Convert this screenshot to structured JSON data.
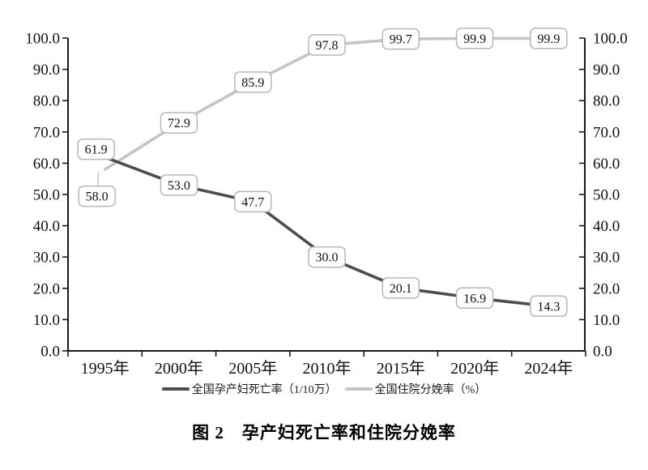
{
  "figure_caption": "图 2　孕产妇死亡率和住院分娩率",
  "chart_data": {
    "type": "line",
    "title": "图 2　孕产妇死亡率和住院分娩率",
    "categories": [
      "1995年",
      "2000年",
      "2005年",
      "2010年",
      "2015年",
      "2020年",
      "2024年"
    ],
    "series": [
      {
        "id": "maternal-mortality-rate",
        "name": "全国孕产妇死亡率（1/10万）",
        "values": [
          61.9,
          53.0,
          47.7,
          30.0,
          20.1,
          16.9,
          14.3
        ],
        "data_labels": [
          "61.9",
          "53.0",
          "47.7",
          "30.0",
          "20.1",
          "16.9",
          "14.3"
        ],
        "color": "#4d4d4f",
        "label_offsets": {
          "0": [
            -11,
            -10
          ]
        }
      },
      {
        "id": "hospital-delivery-rate",
        "name": "全国住院分娩率（%）",
        "values": [
          58.0,
          72.9,
          85.9,
          97.8,
          99.7,
          99.9,
          99.9
        ],
        "data_labels": [
          "58.0",
          "72.9",
          "85.9",
          "97.8",
          "99.7",
          "99.9",
          "99.9"
        ],
        "color": "#c4c4c6",
        "label_offsets": {
          "0": [
            -10,
            33
          ]
        },
        "leader_line_points": [
          0
        ]
      }
    ],
    "ylim": [
      0,
      100
    ],
    "ytick_step": 10,
    "ytick_labels": [
      "0.0",
      "10.0",
      "20.0",
      "30.0",
      "40.0",
      "50.0",
      "60.0",
      "70.0",
      "80.0",
      "90.0",
      "100.0"
    ],
    "y_axis_sides": [
      "left",
      "right"
    ],
    "grid": false,
    "legend_position": "bottom",
    "colors": {
      "axis": "#1a1a1a",
      "label_box_fill": "#ffffff",
      "label_box_border": "#b7b7b9",
      "label_text": "#111111"
    }
  }
}
